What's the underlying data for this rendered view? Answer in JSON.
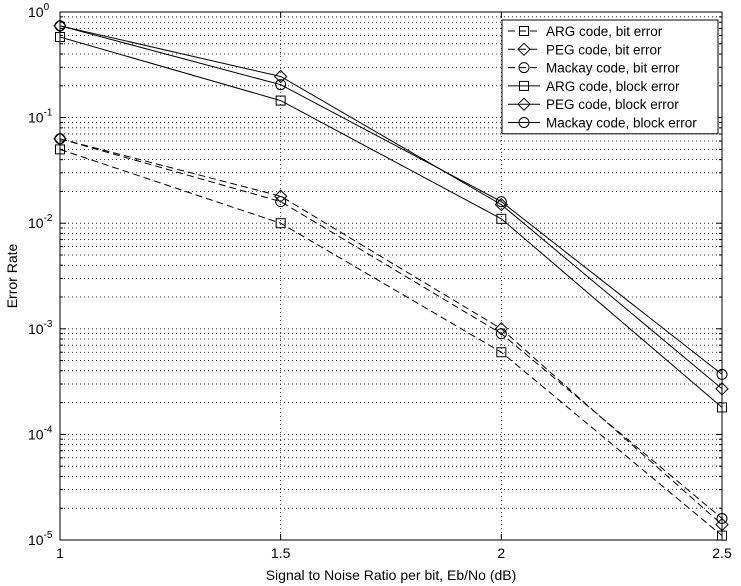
{
  "chart_data": {
    "type": "line",
    "xlabel": "Signal to Noise Ratio per bit, Eb/No (dB)",
    "ylabel": "Error Rate",
    "xlim": [
      1,
      2.5
    ],
    "ylim": [
      1e-05,
      1
    ],
    "yscale": "log",
    "grid": true,
    "legend_position": "top-right",
    "x_ticks": [
      "1",
      "1.5",
      "2",
      "2.5"
    ],
    "y_ticks": [
      {
        "base": "10",
        "exp": "0"
      },
      {
        "base": "10",
        "exp": "-1"
      },
      {
        "base": "10",
        "exp": "-2"
      },
      {
        "base": "10",
        "exp": "-3"
      },
      {
        "base": "10",
        "exp": "-4"
      },
      {
        "base": "10",
        "exp": "-5"
      }
    ],
    "x": [
      1,
      1.5,
      2,
      2.5
    ],
    "series": [
      {
        "name": "ARG code, bit error",
        "marker": "square",
        "linestyle": "dashed",
        "values": [
          0.05,
          0.01,
          0.0006,
          1.1e-05
        ]
      },
      {
        "name": "PEG code, bit error",
        "marker": "diamond",
        "linestyle": "dashed",
        "values": [
          0.063,
          0.018,
          0.001,
          1.4e-05
        ]
      },
      {
        "name": "Mackay code, bit error",
        "marker": "circle",
        "linestyle": "dashed",
        "values": [
          0.063,
          0.016,
          0.0009,
          1.6e-05
        ]
      },
      {
        "name": "ARG code, block error",
        "marker": "square",
        "linestyle": "solid",
        "values": [
          0.58,
          0.145,
          0.011,
          0.00018
        ]
      },
      {
        "name": "PEG code, block error",
        "marker": "diamond",
        "linestyle": "solid",
        "values": [
          0.74,
          0.245,
          0.015,
          0.00027
        ]
      },
      {
        "name": "Mackay code, block error",
        "marker": "circle",
        "linestyle": "solid",
        "values": [
          0.74,
          0.205,
          0.016,
          0.00037
        ]
      }
    ]
  }
}
